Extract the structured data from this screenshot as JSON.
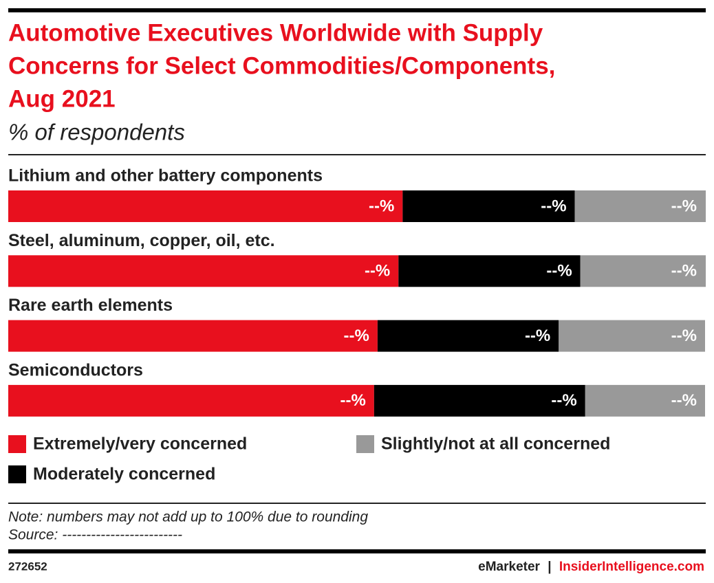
{
  "chart_data": {
    "type": "stacked-bar",
    "title_lines": [
      "Automotive Executives Worldwide with Supply",
      "Concerns for Select Commodities/Components,",
      "Aug 2021"
    ],
    "subtitle": "% of respondents",
    "categories": [
      "Lithium and other battery components",
      "Steel, aluminum, copper, oil, etc.",
      "Rare earth elements",
      "Semiconductors"
    ],
    "xlim": [
      0,
      100
    ],
    "series": [
      {
        "name": "Extremely/very concerned",
        "color": "#e8101e",
        "values": [
          56.6,
          56.0,
          53.0,
          52.5
        ],
        "value_labels": [
          "--%",
          "--%",
          "--%",
          "--%"
        ]
      },
      {
        "name": "Moderately concerned",
        "color": "#000000",
        "values": [
          24.7,
          26.1,
          26.0,
          30.3
        ],
        "value_labels": [
          "--%",
          "--%",
          "--%",
          "--%"
        ]
      },
      {
        "name": "Slightly/not at all concerned",
        "color": "#999999",
        "values": [
          18.8,
          18.0,
          21.0,
          17.2
        ],
        "value_labels": [
          "--%",
          "--%",
          "--%",
          "--%"
        ]
      }
    ],
    "note": "Note: numbers may not add up to 100% due to rounding",
    "source": "Source: -------------------------",
    "chart_id": "272652",
    "brand": "eMarketer",
    "separator": "|",
    "site": "InsiderIntelligence.com"
  }
}
